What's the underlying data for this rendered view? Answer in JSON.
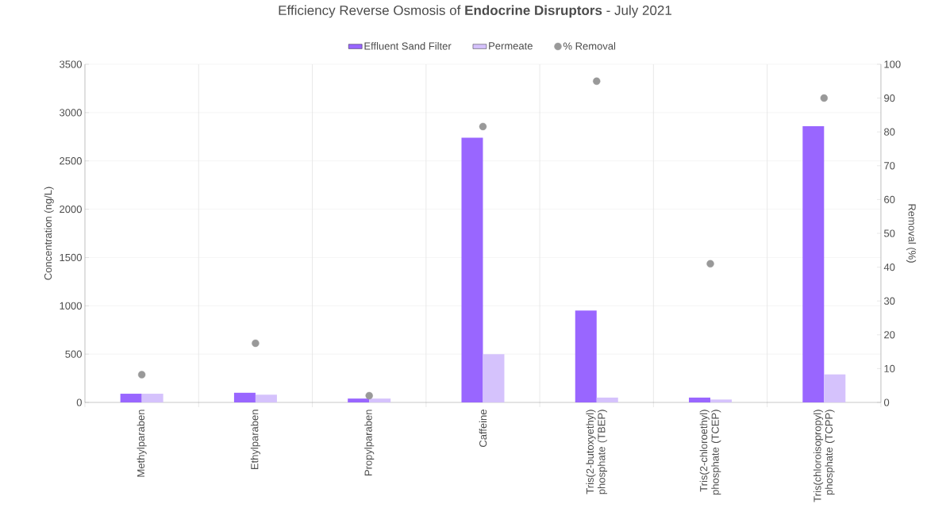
{
  "chart_data": {
    "type": "bar",
    "title": "Efficiency Reverse Osmosis of **Endocrine Disruptors** - July 2021",
    "ylabel": "Concentration (ng/L)",
    "y2label": "Removal (%)",
    "categories": [
      "Methylparaben",
      "Ethylparaben",
      "Propylparaben",
      "Caffeine",
      "Tris(2-butoxyethyl) phosphate (TBEP)",
      "Tris(2-chloroethyl) phosphate (TCEP)",
      "Tris(chloroisopropyl) phosphate (TCPP)"
    ],
    "series": [
      {
        "name": "Effluent Sand Filter",
        "color": "#9966ff",
        "values": [
          90,
          100,
          40,
          2740,
          950,
          50,
          2860
        ]
      },
      {
        "name": "Permeate",
        "color": "#d5c2fc",
        "values": [
          90,
          80,
          40,
          500,
          50,
          30,
          290
        ]
      },
      {
        "name": "% Removal",
        "type": "scatter",
        "marker": "circle",
        "axis": "y2",
        "color": "#999999",
        "values": [
          8.2,
          17.5,
          2,
          81.6,
          95,
          41,
          90
        ]
      }
    ],
    "ylim": [
      0,
      3500
    ],
    "yticks": [
      0,
      500,
      1000,
      1500,
      2000,
      2500,
      3000,
      3500
    ],
    "y2lim": [
      0,
      100
    ],
    "y2ticks": [
      0,
      10,
      20,
      30,
      40,
      50,
      60,
      70,
      80,
      90,
      100
    ],
    "grid": true,
    "legend": "top"
  }
}
